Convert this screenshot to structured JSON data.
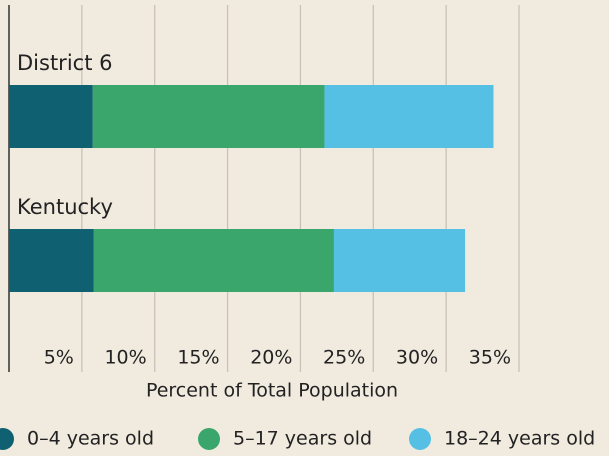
{
  "chart_data": {
    "type": "stacked_barh",
    "categories": [
      "District 6",
      "Kentucky"
    ],
    "series": [
      {
        "name": "0–4 years old",
        "color": "#0f6070",
        "values": [
          5.75,
          5.8
        ]
      },
      {
        "name": "5–17 years old",
        "color": "#3aa66b",
        "values": [
          15.9,
          16.5
        ]
      },
      {
        "name": "18–24 years old",
        "color": "#55c0e4",
        "values": [
          11.6,
          9.0
        ]
      }
    ],
    "xlabel": "Percent of Total Population",
    "xlim": [
      0,
      35
    ],
    "xticks": [
      {
        "value": 5,
        "label": "5%"
      },
      {
        "value": 10,
        "label": "10%"
      },
      {
        "value": 15,
        "label": "15%"
      },
      {
        "value": 20,
        "label": "20%"
      },
      {
        "value": 25,
        "label": "25%"
      },
      {
        "value": 30,
        "label": "30%"
      },
      {
        "value": 35,
        "label": "35%"
      }
    ],
    "grid": true,
    "legend": "bottom"
  }
}
